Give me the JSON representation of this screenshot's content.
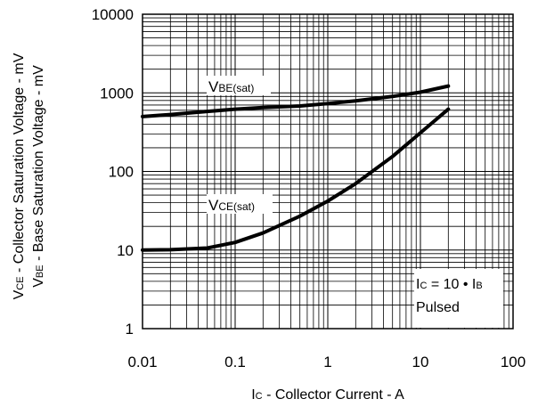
{
  "chart_data": {
    "type": "line",
    "title": "",
    "x_scale": "log",
    "y_scale": "log",
    "xlim": [
      0.01,
      100
    ],
    "ylim": [
      1,
      10000
    ],
    "grid": true,
    "x_ticks": [
      "0.01",
      "0.1",
      "1",
      "10",
      "100"
    ],
    "y_ticks": [
      "1",
      "10",
      "100",
      "1000",
      "10000"
    ],
    "xlabel": {
      "sym": "I",
      "sub": "C",
      "text": " - Collector Current - A"
    },
    "ylabel_lines": [
      {
        "sym": "V",
        "sub": "CE",
        "text": " - Collector Saturation Voltage - mV"
      },
      {
        "sym": "V",
        "sub": "BE",
        "text": " - Base Saturation Voltage - mV"
      }
    ],
    "series": [
      {
        "label_main": "V",
        "label_sub": "BE(sat)",
        "x": [
          0.01,
          0.02,
          0.05,
          0.1,
          0.2,
          0.5,
          1,
          2,
          5,
          10,
          20
        ],
        "y": [
          500,
          530,
          580,
          620,
          650,
          680,
          730,
          790,
          900,
          1020,
          1220
        ]
      },
      {
        "label_main": "V",
        "label_sub": "CE(sat)",
        "x": [
          0.01,
          0.02,
          0.05,
          0.1,
          0.2,
          0.5,
          1,
          2,
          5,
          10,
          20
        ],
        "y": [
          10,
          10.1,
          10.6,
          12.5,
          16.5,
          27,
          42,
          70,
          155,
          310,
          620
        ]
      }
    ],
    "annotation": {
      "line1_a": "I",
      "line1_sub_a": "C",
      "line1_mid": " = 10 • I",
      "line1_sub_b": "B",
      "line2": "Pulsed"
    }
  }
}
